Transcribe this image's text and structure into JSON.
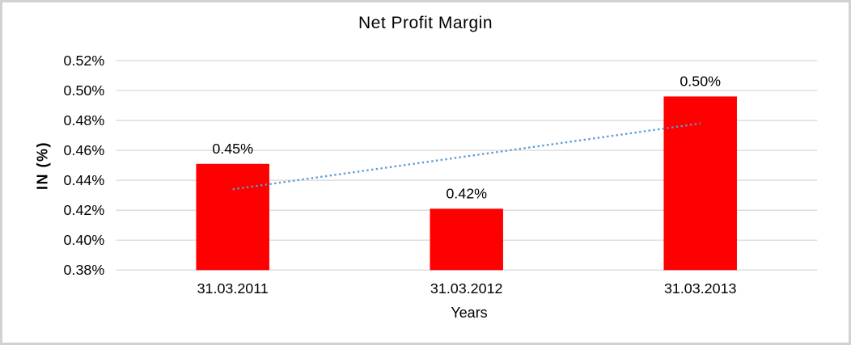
{
  "chart_data": {
    "type": "bar",
    "title": "Net Profit Margin",
    "xlabel": "Years",
    "ylabel": "IN (%)",
    "categories": [
      "31.03.2011",
      "31.03.2012",
      "31.03.2013"
    ],
    "values": [
      0.451,
      0.421,
      0.496
    ],
    "data_labels": [
      "0.45%",
      "0.42%",
      "0.50%"
    ],
    "ylim": [
      0.38,
      0.52
    ],
    "ytick_values": [
      0.38,
      0.4,
      0.42,
      0.44,
      0.46,
      0.48,
      0.5,
      0.52
    ],
    "ytick_labels": [
      "0.38%",
      "0.40%",
      "0.42%",
      "0.44%",
      "0.46%",
      "0.48%",
      "0.50%",
      "0.52%"
    ],
    "grid": true,
    "legend": false,
    "trendline": {
      "type": "linear",
      "style": "dotted",
      "start_value": 0.434,
      "end_value": 0.478
    },
    "colors": {
      "bar": "#FF0000",
      "trend": "#5B9BD5",
      "grid": "#D9D9D9",
      "text": "#000000",
      "frame_border": "#D2D2D2",
      "background": "#FFFFFF"
    }
  }
}
